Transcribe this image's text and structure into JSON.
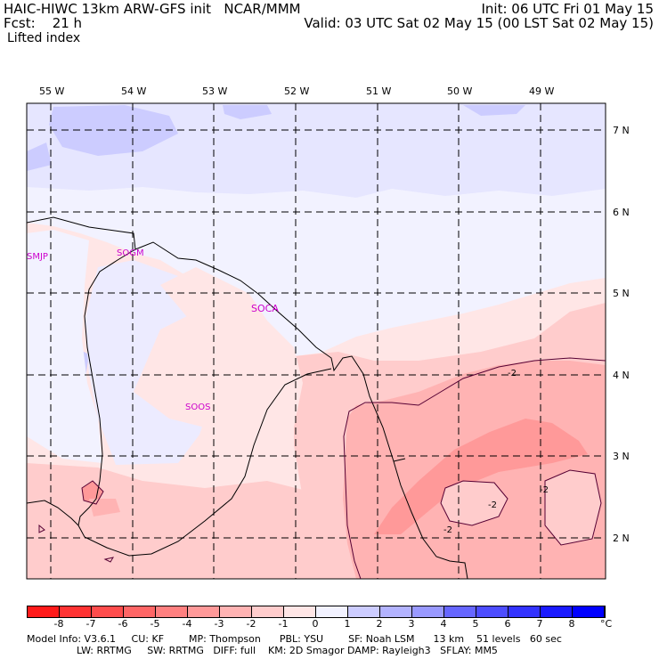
{
  "header": {
    "line1_left": "HAIC-HIWC 13km ARW-GFS init   NCAR/MMM",
    "line1_right": "Init: 06 UTC Fri 01 May 15",
    "line2_left": "Fcst:    21 h",
    "line2_right": "Valid: 03 UTC Sat 02 May 15 (00 LST Sat 02 May 15)",
    "field": "Lifted index"
  },
  "map": {
    "lon_labels": [
      "55 W",
      "54 W",
      "53 W",
      "52 W",
      "51 W",
      "50 W",
      "49 W"
    ],
    "lat_labels": [
      "7 N",
      "6 N",
      "5 N",
      "4 N",
      "3 N",
      "2 N"
    ],
    "stations": [
      "SMJP",
      "SOGM",
      "SOCA",
      "SOOS"
    ],
    "contour_labels": [
      "-2",
      "-2",
      "-2",
      "-2"
    ]
  },
  "colorbar": {
    "ticks": [
      "-8",
      "-7",
      "-6",
      "-5",
      "-4",
      "-3",
      "-2",
      "-1",
      "0",
      "1",
      "2",
      "3",
      "4",
      "5",
      "6",
      "7",
      "8"
    ],
    "unit": "°C",
    "colors": [
      "#ff1a1a",
      "#ff3333",
      "#ff4d4d",
      "#ff6666",
      "#ff8080",
      "#ff9999",
      "#ffb3b3",
      "#ffcccc",
      "#ffe6e6",
      "#f2f2ff",
      "#ccccff",
      "#b3b3ff",
      "#9999ff",
      "#6666ff",
      "#4d4dff",
      "#3333ff",
      "#1a1aff",
      "#0000ff"
    ]
  },
  "footer": {
    "line1": "Model Info: V3.6.1     CU: KF        MP: Thompson      PBL: YSU        SF: Noah LSM      13 km    51 levels   60 sec",
    "line2": "                LW: RRTMG     SW: RRTMG   DIFF: full    KM: 2D Smagor DAMP: Rayleigh3   SFLAY: MM5"
  }
}
